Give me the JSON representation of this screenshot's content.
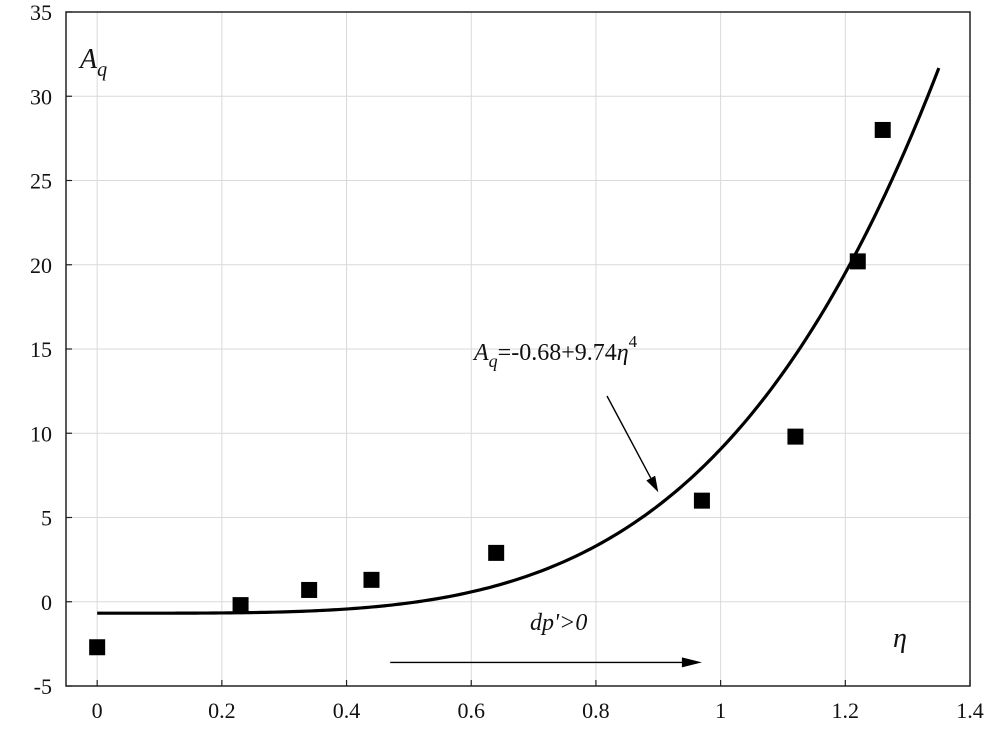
{
  "chart_data": {
    "type": "scatter",
    "xlabel": "η",
    "ylabel": {
      "main": "A",
      "sub": "q"
    },
    "xlim": [
      -0.05,
      1.4
    ],
    "ylim": [
      -5,
      35
    ],
    "xticks": [
      0,
      0.2,
      0.4,
      0.6,
      0.8,
      1,
      1.2,
      1.4
    ],
    "yticks": [
      -5,
      0,
      5,
      10,
      15,
      20,
      25,
      30,
      35
    ],
    "grid": true,
    "series": [
      {
        "kind": "points",
        "marker": "square",
        "color": "#000000",
        "points": [
          {
            "x": 0,
            "y": -2.7
          },
          {
            "x": 0.23,
            "y": -0.2
          },
          {
            "x": 0.34,
            "y": 0.7
          },
          {
            "x": 0.44,
            "y": 1.3
          },
          {
            "x": 0.64,
            "y": 2.9
          },
          {
            "x": 0.97,
            "y": 6.0
          },
          {
            "x": 1.12,
            "y": 9.8
          },
          {
            "x": 1.22,
            "y": 20.2
          },
          {
            "x": 1.26,
            "y": 28.0
          }
        ]
      },
      {
        "kind": "fit-curve",
        "color": "#000000",
        "equation": {
          "intercept": -0.68,
          "coefficient": 9.74,
          "power": 4
        },
        "x_range": [
          0,
          1.35
        ]
      }
    ],
    "annotations": [
      {
        "id": "fit-equation",
        "text_main": "A",
        "text_sub": "q",
        "text_rest": "=-0.68+9.74",
        "text_eta": "η",
        "text_sup": "4",
        "anchor_x": 0.9,
        "anchor_y": 6.5
      },
      {
        "id": "pressure-gradient",
        "text": "dp'>0",
        "arrow_from_x": 0.47,
        "arrow_to_x": 0.97,
        "arrow_y": -3.6
      }
    ]
  }
}
